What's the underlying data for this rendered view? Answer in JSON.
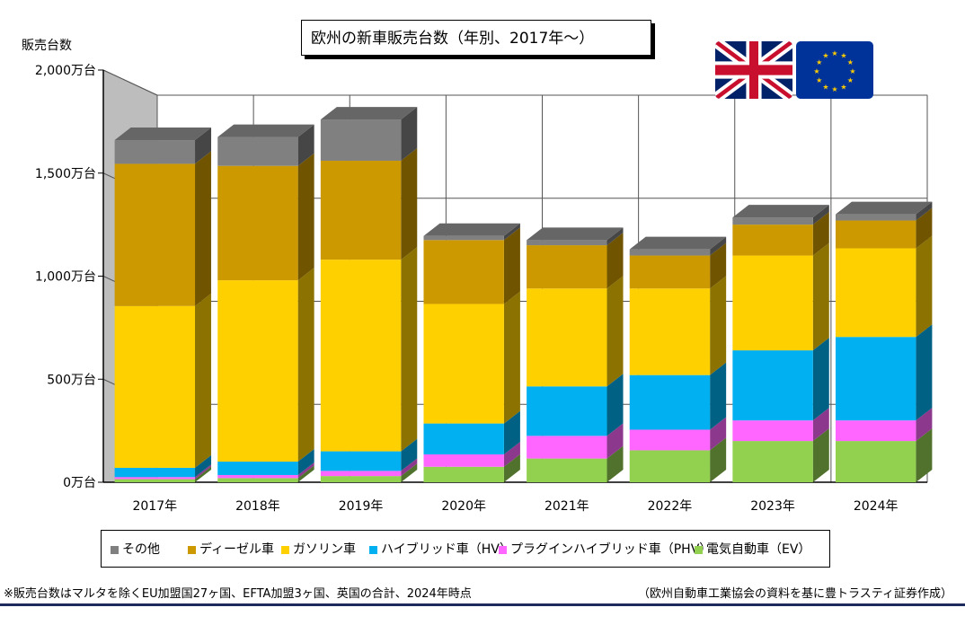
{
  "title": "欧州の新車販売台数（年別、2017年～）",
  "footnote_left": "※販売台数はマルタを除くEU加盟国27ヶ国、EFTA加盟3ヶ国、英国の合計、2024年時点",
  "footnote_right": "（欧州自動車工業協会の資料を基に豊トラスティ証券作成）",
  "flags": [
    "uk-flag",
    "eu-flag"
  ],
  "chart_data": {
    "type": "bar",
    "stacked": true,
    "three_d": true,
    "ylabel": "販売台数",
    "ylim": [
      0,
      2000
    ],
    "yticks": [
      0,
      500,
      1000,
      1500,
      2000
    ],
    "ytick_labels": [
      "0万台",
      "500万台",
      "1,000万台",
      "1,500万台",
      "2,000万台"
    ],
    "grid": true,
    "legend_position": "bottom",
    "categories": [
      "2017年",
      "2018年",
      "2019年",
      "2020年",
      "2021年",
      "2022年",
      "2023年",
      "2024年"
    ],
    "series": [
      {
        "name": "電気自動車（EV）",
        "color": "#92d050",
        "values": [
          15,
          20,
          30,
          75,
          115,
          155,
          200,
          200
        ]
      },
      {
        "name": "プラグインハイブリッド車（PHV）",
        "color": "#ff66ff",
        "values": [
          10,
          15,
          25,
          60,
          110,
          100,
          100,
          100
        ]
      },
      {
        "name": "ハイブリッド車（HV）",
        "color": "#00b0f0",
        "values": [
          45,
          65,
          95,
          150,
          240,
          265,
          340,
          405
        ]
      },
      {
        "name": "ガソリン車",
        "color": "#ffd000",
        "values": [
          785,
          880,
          930,
          580,
          475,
          420,
          460,
          430
        ]
      },
      {
        "name": "ディーゼル車",
        "color": "#cc9900",
        "values": [
          690,
          555,
          480,
          310,
          210,
          160,
          150,
          135
        ]
      },
      {
        "name": "その他",
        "color": "#808080",
        "values": [
          115,
          140,
          200,
          20,
          25,
          30,
          35,
          30
        ]
      }
    ]
  }
}
